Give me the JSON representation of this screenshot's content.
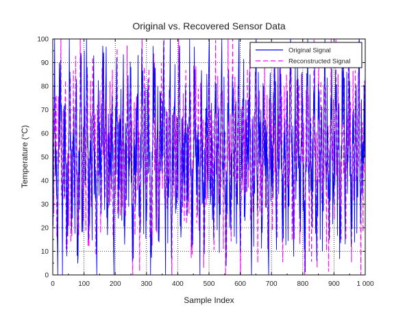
{
  "chart_data": {
    "type": "line",
    "title": "Original vs. Recovered Sensor Data",
    "xlabel": "Sample Index",
    "ylabel": "Temperature (°C)",
    "xlim": [
      0,
      1000
    ],
    "ylim": [
      0,
      100
    ],
    "x_ticks": [
      0,
      100,
      200,
      300,
      400,
      500,
      600,
      700,
      800,
      900,
      1000
    ],
    "x_tick_labels": [
      "0",
      "100",
      "200",
      "300",
      "400",
      "500",
      "600",
      "700",
      "800",
      "900",
      "1 000"
    ],
    "y_ticks": [
      0,
      10,
      20,
      30,
      40,
      50,
      60,
      70,
      80,
      90,
      100
    ],
    "y_tick_labels": [
      "0",
      "10",
      "20",
      "30",
      "40",
      "50",
      "60",
      "70",
      "80",
      "90",
      "100"
    ],
    "grid": true,
    "grid_style": "dotted",
    "legend_position": "top-right",
    "series": [
      {
        "name": "Original Signal",
        "color": "#0000ff",
        "line_style": "solid",
        "x_start": 0,
        "x_step": 5,
        "values": [
          30,
          82,
          48,
          12,
          65,
          91,
          27,
          55,
          73,
          8,
          44,
          86,
          19,
          60,
          35,
          78,
          5,
          52,
          94,
          22,
          68,
          40,
          88,
          15,
          57,
          31,
          80,
          47,
          10,
          71,
          63,
          26,
          97,
          38,
          84,
          17,
          59,
          42,
          76,
          9,
          50,
          92,
          24,
          66,
          33,
          81,
          13,
          55,
          70,
          45,
          88,
          6,
          62,
          29,
          75,
          51,
          18,
          96,
          37,
          69,
          23,
          83,
          46,
          11,
          58,
          90,
          32,
          64,
          14,
          77,
          43,
          99,
          20,
          61,
          36,
          85,
          7,
          54,
          72,
          28,
          49,
          93,
          16,
          67,
          39,
          80,
          25,
          57,
          74,
          12,
          46,
          87,
          34,
          63,
          21,
          79,
          52,
          9,
          70,
          41,
          95,
          30,
          58,
          15,
          82,
          48,
          66,
          26,
          89,
          37,
          61,
          4,
          73,
          53,
          19,
          84,
          44,
          68,
          31,
          91,
          10,
          56,
          76,
          23,
          65,
          47,
          86,
          13,
          59,
          35,
          98,
          27,
          71,
          50,
          18,
          80,
          42,
          63,
          8,
          77,
          55,
          33,
          92,
          21,
          67,
          45,
          85,
          14,
          60,
          38,
          74,
          29,
          96,
          51,
          17,
          69,
          40,
          83,
          24,
          58,
          72,
          11,
          49,
          88,
          35,
          64,
          20,
          78,
          53,
          6,
          81,
          43,
          66,
          27,
          94,
          36,
          61,
          15,
          75,
          52,
          30,
          87,
          44,
          70,
          19,
          57,
          90,
          25,
          63,
          48,
          82,
          12,
          68,
          39,
          76,
          33,
          99,
          22,
          55,
          47,
          85
        ],
        "note_values": "y values approximated at 5-sample intervals"
      },
      {
        "name": "Reconstructed Signal",
        "color": "#ff00ff",
        "line_style": "dashed",
        "x_start": 0,
        "x_step": 5,
        "values": [
          28,
          79,
          51,
          15,
          62,
          88,
          30,
          53,
          76,
          11,
          46,
          83,
          22,
          58,
          38,
          75,
          8,
          55,
          91,
          25,
          65,
          43,
          85,
          18,
          54,
          34,
          77,
          50,
          13,
          68,
          66,
          29,
          94,
          41,
          81,
          20,
          56,
          45,
          73,
          12,
          53,
          89,
          27,
          63,
          36,
          78,
          16,
          52,
          73,
          42,
          85,
          9,
          59,
          32,
          72,
          54,
          21,
          93,
          40,
          66,
          26,
          80,
          49,
          14,
          55,
          87,
          35,
          61,
          17,
          74,
          46,
          96,
          23,
          58,
          39,
          82,
          10,
          51,
          75,
          31,
          52,
          90,
          19,
          64,
          42,
          77,
          28,
          54,
          77,
          15,
          49,
          84,
          37,
          60,
          24,
          76,
          55,
          12,
          67,
          44,
          92,
          33,
          55,
          18,
          79,
          51,
          63,
          29,
          86,
          40,
          58,
          7,
          70,
          56,
          22,
          81,
          47,
          65,
          34,
          88,
          13,
          53,
          79,
          26,
          62,
          50,
          83,
          16,
          56,
          38,
          95,
          30,
          68,
          53,
          21,
          77,
          45,
          60,
          11,
          74,
          58,
          36,
          89,
          24,
          64,
          48,
          82,
          17,
          57,
          41,
          71,
          32,
          93,
          54,
          20,
          66,
          43,
          80,
          27,
          55,
          75,
          14,
          52,
          85,
          38,
          61,
          23,
          75,
          56,
          9,
          78,
          46,
          63,
          30,
          91,
          39,
          58,
          18,
          72,
          55,
          33,
          84,
          47,
          67,
          22,
          54,
          87,
          28,
          60,
          51,
          79,
          15,
          65,
          42,
          73,
          36,
          96,
          25,
          52,
          50,
          82
        ],
        "note_values": "y values approximated at 5-sample intervals"
      }
    ]
  },
  "legend": {
    "items": [
      {
        "label": "Original Signal",
        "color": "#0000ff",
        "dash": ""
      },
      {
        "label": "Reconstructed Signal",
        "color": "#ff00ff",
        "dash": "7,4"
      }
    ]
  }
}
